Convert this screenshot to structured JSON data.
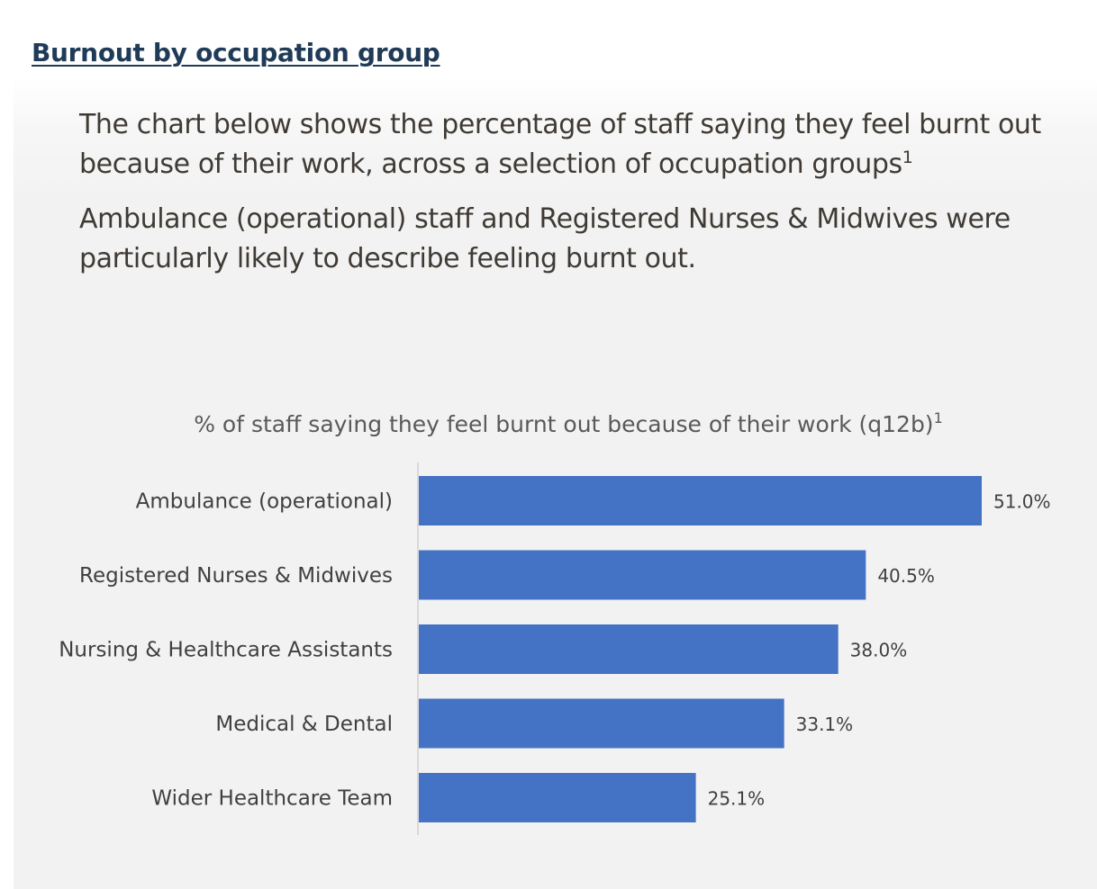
{
  "heading": "Burnout by occupation group",
  "intro": {
    "p1": "The chart below shows the percentage of staff saying they feel burnt out because of their work, across a selection of occupation groups",
    "p1_sup": "1",
    "p2": "Ambulance (operational) staff and Registered Nurses & Midwives were particularly likely to describe feeling burnt out."
  },
  "colors": {
    "bar": "#4472c4",
    "heading": "#1f3b57",
    "text": "#3f3a34",
    "axis_label": "#404040"
  },
  "chart_data": {
    "type": "bar",
    "orientation": "horizontal",
    "title": "% of staff saying they feel burnt out because of their work (q12b)",
    "title_sup": "1",
    "categories": [
      "Ambulance (operational)",
      "Registered Nurses & Midwives",
      "Nursing & Healthcare Assistants",
      "Medical & Dental",
      "Wider Healthcare Team"
    ],
    "values": [
      51.0,
      40.5,
      38.0,
      33.1,
      25.1
    ],
    "data_labels": [
      "51.0%",
      "40.5%",
      "38.0%",
      "33.1%",
      "25.1%"
    ],
    "value_suffix": "%",
    "xlim": [
      0,
      51.0
    ],
    "grid": false,
    "legend": "none"
  }
}
